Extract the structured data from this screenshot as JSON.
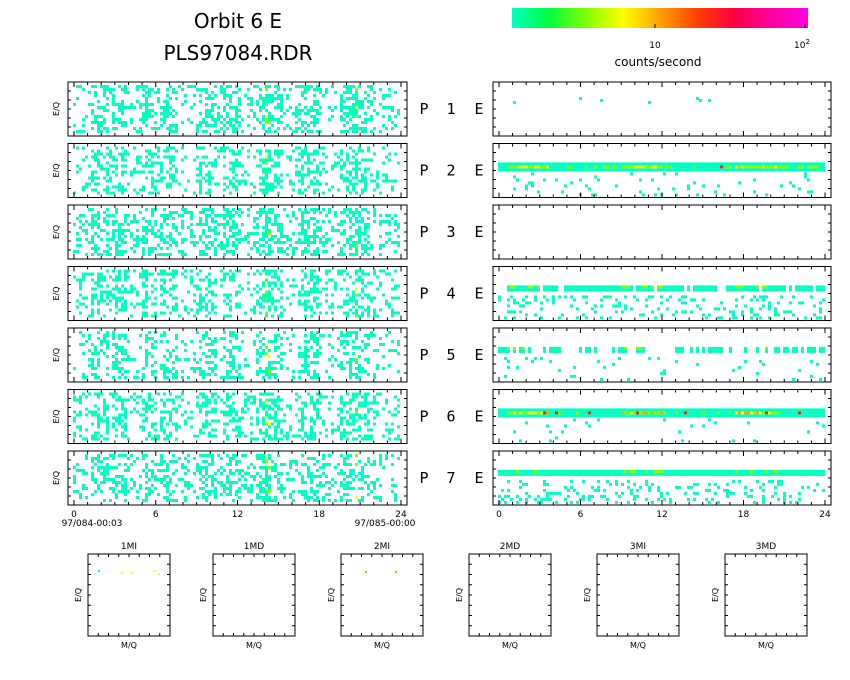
{
  "header": {
    "title_line1": "Orbit  6  E",
    "title_line2": "PLS97084.RDR"
  },
  "colorbar": {
    "stops": [
      "#00ffc0",
      "#00ff40",
      "#80ff00",
      "#ffff00",
      "#ffa000",
      "#ff4000",
      "#ff0040",
      "#ff00a0",
      "#ff00e0"
    ],
    "tick_10": "10",
    "tick_100": "10",
    "tick_100_sup": "2",
    "label": "counts/second"
  },
  "colors": {
    "low": "#00ffc0",
    "mid": "#80ff00",
    "high": "#ffff00",
    "higher": "#ffa000",
    "peak": "#ff2000",
    "frame": "#000000"
  },
  "panel_ylabel": "E/Q",
  "rows": [
    {
      "p": "P",
      "n": "1",
      "e": "E",
      "left_density": 0.3,
      "right_pattern": "sparse"
    },
    {
      "p": "P",
      "n": "2",
      "e": "E",
      "left_density": 0.28,
      "right_pattern": "band-strong"
    },
    {
      "p": "P",
      "n": "3",
      "e": "E",
      "left_density": 0.35,
      "right_pattern": "empty"
    },
    {
      "p": "P",
      "n": "4",
      "e": "E",
      "left_density": 0.28,
      "right_pattern": "band-medium"
    },
    {
      "p": "P",
      "n": "5",
      "e": "E",
      "left_density": 0.22,
      "right_pattern": "band-weak"
    },
    {
      "p": "P",
      "n": "6",
      "e": "E",
      "left_density": 0.3,
      "right_pattern": "band-hot"
    },
    {
      "p": "P",
      "n": "7",
      "e": "E",
      "left_density": 0.28,
      "right_pattern": "band-medium2"
    }
  ],
  "x_ticks": [
    "0",
    "6",
    "12",
    "18",
    "24"
  ],
  "time_start": "97/084-00:03",
  "time_end": "97/085-00:00",
  "chart_data": [
    {
      "type": "heatmap",
      "title": "Orbit  6  E",
      "subtitle": "PLS97084.RDR",
      "ylabel": "E/Q",
      "xlim": [
        0,
        24
      ],
      "x_ticks": [
        0,
        6,
        12,
        18,
        24
      ],
      "color_scale": "log",
      "color_range": [
        1,
        100
      ],
      "colorbar_label": "counts/second"
    }
  ],
  "mq_panels": [
    {
      "title": "1MI",
      "xlabel": "M/Q",
      "ylabel": "E/Q",
      "dots": "top-sparse"
    },
    {
      "title": "1MD",
      "xlabel": "M/Q",
      "ylabel": "E/Q",
      "dots": "none"
    },
    {
      "title": "2MI",
      "xlabel": "M/Q",
      "ylabel": "E/Q",
      "dots": "two"
    },
    {
      "title": "2MD",
      "xlabel": "M/Q",
      "ylabel": "E/Q",
      "dots": "none"
    },
    {
      "title": "3MI",
      "xlabel": "M/Q",
      "ylabel": "E/Q",
      "dots": "none"
    },
    {
      "title": "3MD",
      "xlabel": "M/Q",
      "ylabel": "E/Q",
      "dots": "none"
    }
  ]
}
